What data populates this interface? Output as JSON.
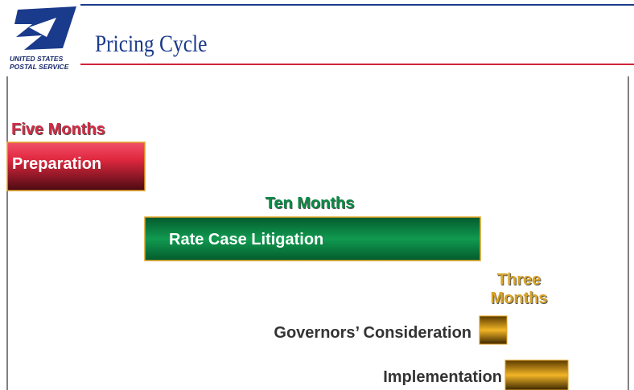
{
  "logo": {
    "line1": "UNITED STATES",
    "line2": "POSTAL SERVICE"
  },
  "header": {
    "title": "Pricing Cycle"
  },
  "phases": [
    {
      "duration": "Five Months",
      "label": "Preparation"
    },
    {
      "duration": "Ten Months",
      "label": "Rate Case Litigation"
    },
    {
      "duration_lines": [
        "Three",
        "Months"
      ],
      "label": "Governors’ Consideration"
    },
    {
      "label": "Implementation"
    }
  ]
}
